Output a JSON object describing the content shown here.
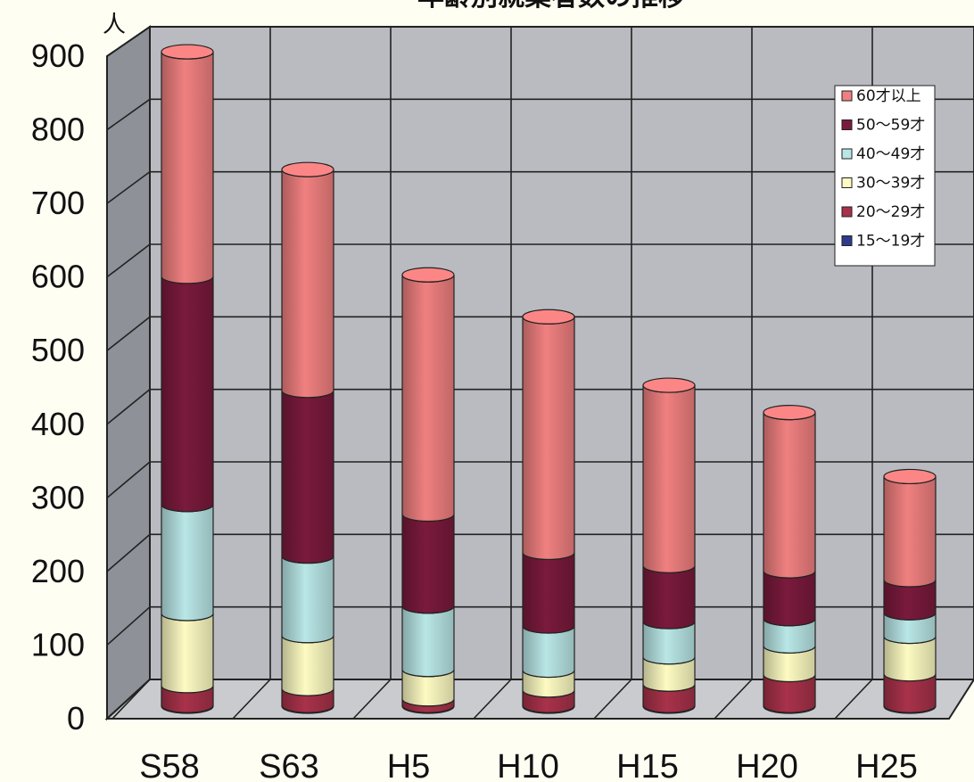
{
  "chart_data": {
    "type": "bar",
    "stacked": true,
    "style": "3d-cylinder",
    "title": "年齢別就業者数の推移",
    "ylabel": "人",
    "ylim": [
      0,
      900
    ],
    "yticks": [
      0,
      100,
      200,
      300,
      400,
      500,
      600,
      700,
      800,
      900
    ],
    "grid": true,
    "legend_position": "top-right",
    "categories": [
      "S58",
      "S63",
      "H5",
      "H10",
      "H15",
      "H20",
      "H25"
    ],
    "series": [
      {
        "name": "15～19才",
        "color": "#2f3a8c",
        "values": [
          1,
          1,
          1,
          1,
          1,
          1,
          1
        ]
      },
      {
        "name": "20～29才",
        "color": "#a8324a",
        "values": [
          27,
          23,
          9,
          21,
          29,
          42,
          43
        ]
      },
      {
        "name": "30～39才",
        "color": "#fdfbc2",
        "values": [
          98,
          72,
          40,
          27,
          37,
          39,
          51
        ]
      },
      {
        "name": "40～49才",
        "color": "#b9e6e6",
        "values": [
          148,
          108,
          86,
          60,
          48,
          37,
          32
        ]
      },
      {
        "name": "50～59才",
        "color": "#7a1a3c",
        "values": [
          310,
          225,
          125,
          100,
          76,
          65,
          45
        ]
      },
      {
        "name": "60才以上",
        "color": "#f08080",
        "values": [
          305,
          300,
          325,
          320,
          245,
          215,
          140
        ]
      }
    ]
  }
}
